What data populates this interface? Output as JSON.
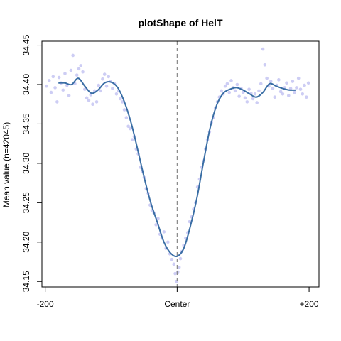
{
  "chart_data": {
    "type": "scatter",
    "title": "plotShape of HelT",
    "xlabel": "",
    "ylabel": "Mean value (n=42045)",
    "xlim": [
      -205,
      215
    ],
    "ylim": [
      34.143,
      34.455
    ],
    "x_ticks": [
      {
        "value": -200,
        "label": "-200"
      },
      {
        "value": 0,
        "label": "Center"
      },
      {
        "value": 200,
        "label": "+200"
      }
    ],
    "y_ticks": [
      {
        "value": 34.15,
        "label": "34.15"
      },
      {
        "value": 34.2,
        "label": "34.20"
      },
      {
        "value": 34.25,
        "label": "34.25"
      },
      {
        "value": 34.3,
        "label": "34.30"
      },
      {
        "value": 34.35,
        "label": "34.35"
      },
      {
        "value": 34.4,
        "label": "34.40"
      },
      {
        "value": 34.45,
        "label": "34.45"
      }
    ],
    "center_line": {
      "x": 0,
      "style": "dashed",
      "color": "#888888"
    },
    "grid": false,
    "colors": {
      "points": "#b8b8f0",
      "curve": "#3a6ea5",
      "frame": "#000000"
    },
    "smooth_curve": [
      {
        "x": -180,
        "y": 34.402
      },
      {
        "x": -170,
        "y": 34.402
      },
      {
        "x": -160,
        "y": 34.4
      },
      {
        "x": -150,
        "y": 34.408
      },
      {
        "x": -140,
        "y": 34.398
      },
      {
        "x": -130,
        "y": 34.389
      },
      {
        "x": -120,
        "y": 34.393
      },
      {
        "x": -110,
        "y": 34.402
      },
      {
        "x": -100,
        "y": 34.403
      },
      {
        "x": -90,
        "y": 34.396
      },
      {
        "x": -80,
        "y": 34.378
      },
      {
        "x": -70,
        "y": 34.352
      },
      {
        "x": -60,
        "y": 34.318
      },
      {
        "x": -50,
        "y": 34.282
      },
      {
        "x": -40,
        "y": 34.25
      },
      {
        "x": -30,
        "y": 34.225
      },
      {
        "x": -20,
        "y": 34.2
      },
      {
        "x": -10,
        "y": 34.186
      },
      {
        "x": 0,
        "y": 34.182
      },
      {
        "x": 10,
        "y": 34.192
      },
      {
        "x": 20,
        "y": 34.22
      },
      {
        "x": 30,
        "y": 34.256
      },
      {
        "x": 40,
        "y": 34.302
      },
      {
        "x": 50,
        "y": 34.345
      },
      {
        "x": 60,
        "y": 34.374
      },
      {
        "x": 70,
        "y": 34.389
      },
      {
        "x": 80,
        "y": 34.394
      },
      {
        "x": 90,
        "y": 34.396
      },
      {
        "x": 100,
        "y": 34.393
      },
      {
        "x": 110,
        "y": 34.388
      },
      {
        "x": 120,
        "y": 34.384
      },
      {
        "x": 130,
        "y": 34.39
      },
      {
        "x": 140,
        "y": 34.401
      },
      {
        "x": 150,
        "y": 34.398
      },
      {
        "x": 160,
        "y": 34.395
      },
      {
        "x": 170,
        "y": 34.393
      },
      {
        "x": 180,
        "y": 34.393
      }
    ],
    "scatter_points": [
      {
        "x": -198,
        "y": 34.398
      },
      {
        "x": -194,
        "y": 34.405
      },
      {
        "x": -191,
        "y": 34.39
      },
      {
        "x": -188,
        "y": 34.41
      },
      {
        "x": -185,
        "y": 34.396
      },
      {
        "x": -182,
        "y": 34.378
      },
      {
        "x": -179,
        "y": 34.409
      },
      {
        "x": -176,
        "y": 34.402
      },
      {
        "x": -173,
        "y": 34.393
      },
      {
        "x": -170,
        "y": 34.414
      },
      {
        "x": -167,
        "y": 34.399
      },
      {
        "x": -164,
        "y": 34.386
      },
      {
        "x": -161,
        "y": 34.418
      },
      {
        "x": -158,
        "y": 34.437
      },
      {
        "x": -155,
        "y": 34.401
      },
      {
        "x": -152,
        "y": 34.412
      },
      {
        "x": -149,
        "y": 34.42
      },
      {
        "x": -146,
        "y": 34.424
      },
      {
        "x": -143,
        "y": 34.416
      },
      {
        "x": -140,
        "y": 34.394
      },
      {
        "x": -137,
        "y": 34.383
      },
      {
        "x": -134,
        "y": 34.38
      },
      {
        "x": -131,
        "y": 34.387
      },
      {
        "x": -128,
        "y": 34.375
      },
      {
        "x": -125,
        "y": 34.392
      },
      {
        "x": -122,
        "y": 34.378
      },
      {
        "x": -119,
        "y": 34.399
      },
      {
        "x": -116,
        "y": 34.392
      },
      {
        "x": -113,
        "y": 34.407
      },
      {
        "x": -110,
        "y": 34.413
      },
      {
        "x": -107,
        "y": 34.398
      },
      {
        "x": -104,
        "y": 34.41
      },
      {
        "x": -101,
        "y": 34.404
      },
      {
        "x": -98,
        "y": 34.395
      },
      {
        "x": -95,
        "y": 34.401
      },
      {
        "x": -92,
        "y": 34.388
      },
      {
        "x": -89,
        "y": 34.392
      },
      {
        "x": -86,
        "y": 34.382
      },
      {
        "x": -83,
        "y": 34.378
      },
      {
        "x": -80,
        "y": 34.368
      },
      {
        "x": -77,
        "y": 34.358
      },
      {
        "x": -74,
        "y": 34.347
      },
      {
        "x": -71,
        "y": 34.344
      },
      {
        "x": -68,
        "y": 34.33
      },
      {
        "x": -65,
        "y": 34.334
      },
      {
        "x": -62,
        "y": 34.318
      },
      {
        "x": -59,
        "y": 34.312
      },
      {
        "x": -56,
        "y": 34.295
      },
      {
        "x": -53,
        "y": 34.29
      },
      {
        "x": -50,
        "y": 34.282
      },
      {
        "x": -47,
        "y": 34.268
      },
      {
        "x": -44,
        "y": 34.262
      },
      {
        "x": -41,
        "y": 34.247
      },
      {
        "x": -38,
        "y": 34.24
      },
      {
        "x": -35,
        "y": 34.237
      },
      {
        "x": -32,
        "y": 34.222
      },
      {
        "x": -29,
        "y": 34.23
      },
      {
        "x": -26,
        "y": 34.21
      },
      {
        "x": -23,
        "y": 34.205
      },
      {
        "x": -20,
        "y": 34.213
      },
      {
        "x": -17,
        "y": 34.192
      },
      {
        "x": -14,
        "y": 34.2
      },
      {
        "x": -11,
        "y": 34.185
      },
      {
        "x": -8,
        "y": 34.178
      },
      {
        "x": -5,
        "y": 34.172
      },
      {
        "x": -3,
        "y": 34.16
      },
      {
        "x": -1,
        "y": 34.15
      },
      {
        "x": 1,
        "y": 34.162
      },
      {
        "x": 3,
        "y": 34.168
      },
      {
        "x": 5,
        "y": 34.179
      },
      {
        "x": 7,
        "y": 34.188
      },
      {
        "x": 10,
        "y": 34.196
      },
      {
        "x": 13,
        "y": 34.205
      },
      {
        "x": 16,
        "y": 34.212
      },
      {
        "x": 19,
        "y": 34.226
      },
      {
        "x": 22,
        "y": 34.232
      },
      {
        "x": 25,
        "y": 34.242
      },
      {
        "x": 28,
        "y": 34.25
      },
      {
        "x": 31,
        "y": 34.27
      },
      {
        "x": 34,
        "y": 34.28
      },
      {
        "x": 37,
        "y": 34.295
      },
      {
        "x": 40,
        "y": 34.303
      },
      {
        "x": 43,
        "y": 34.318
      },
      {
        "x": 46,
        "y": 34.33
      },
      {
        "x": 49,
        "y": 34.34
      },
      {
        "x": 52,
        "y": 34.352
      },
      {
        "x": 55,
        "y": 34.358
      },
      {
        "x": 58,
        "y": 34.37
      },
      {
        "x": 61,
        "y": 34.378
      },
      {
        "x": 64,
        "y": 34.384
      },
      {
        "x": 67,
        "y": 34.392
      },
      {
        "x": 70,
        "y": 34.388
      },
      {
        "x": 73,
        "y": 34.398
      },
      {
        "x": 76,
        "y": 34.401
      },
      {
        "x": 79,
        "y": 34.39
      },
      {
        "x": 82,
        "y": 34.405
      },
      {
        "x": 85,
        "y": 34.396
      },
      {
        "x": 88,
        "y": 34.392
      },
      {
        "x": 91,
        "y": 34.4
      },
      {
        "x": 94,
        "y": 34.385
      },
      {
        "x": 97,
        "y": 34.395
      },
      {
        "x": 100,
        "y": 34.39
      },
      {
        "x": 103,
        "y": 34.383
      },
      {
        "x": 106,
        "y": 34.378
      },
      {
        "x": 109,
        "y": 34.394
      },
      {
        "x": 112,
        "y": 34.389
      },
      {
        "x": 115,
        "y": 34.382
      },
      {
        "x": 118,
        "y": 34.388
      },
      {
        "x": 121,
        "y": 34.377
      },
      {
        "x": 124,
        "y": 34.392
      },
      {
        "x": 127,
        "y": 34.401
      },
      {
        "x": 130,
        "y": 34.445
      },
      {
        "x": 133,
        "y": 34.425
      },
      {
        "x": 136,
        "y": 34.408
      },
      {
        "x": 139,
        "y": 34.398
      },
      {
        "x": 142,
        "y": 34.404
      },
      {
        "x": 145,
        "y": 34.395
      },
      {
        "x": 148,
        "y": 34.384
      },
      {
        "x": 151,
        "y": 34.399
      },
      {
        "x": 154,
        "y": 34.406
      },
      {
        "x": 157,
        "y": 34.391
      },
      {
        "x": 160,
        "y": 34.388
      },
      {
        "x": 163,
        "y": 34.396
      },
      {
        "x": 166,
        "y": 34.402
      },
      {
        "x": 169,
        "y": 34.386
      },
      {
        "x": 172,
        "y": 34.395
      },
      {
        "x": 175,
        "y": 34.404
      },
      {
        "x": 178,
        "y": 34.39
      },
      {
        "x": 181,
        "y": 34.396
      },
      {
        "x": 184,
        "y": 34.408
      },
      {
        "x": 187,
        "y": 34.394
      },
      {
        "x": 190,
        "y": 34.388
      },
      {
        "x": 193,
        "y": 34.399
      },
      {
        "x": 196,
        "y": 34.384
      },
      {
        "x": 199,
        "y": 34.402
      }
    ]
  }
}
